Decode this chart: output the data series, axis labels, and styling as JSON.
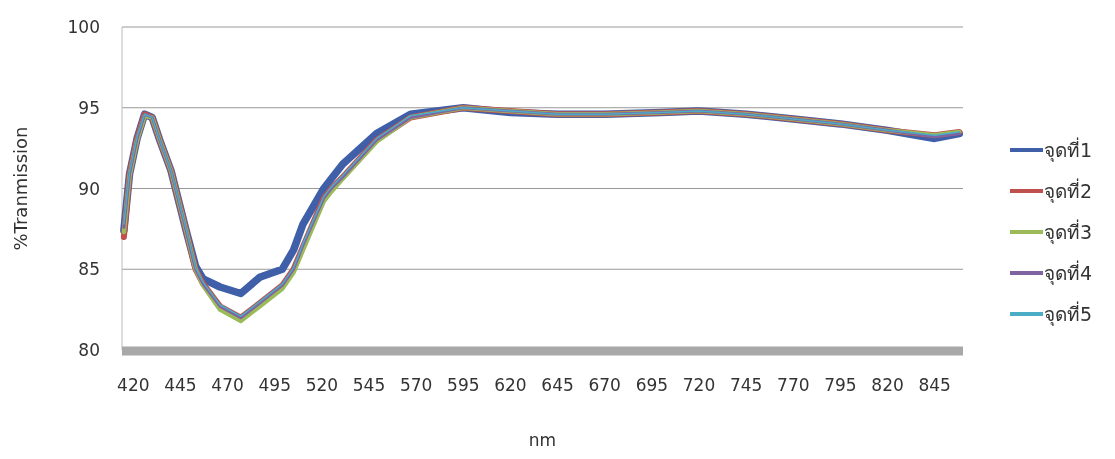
{
  "chart_data": {
    "type": "line",
    "xlabel": "nm",
    "ylabel": "%Tranmission",
    "x": [
      415,
      418,
      422,
      426,
      430,
      434,
      440,
      448,
      453,
      457,
      466,
      477,
      487,
      499,
      505,
      510,
      521,
      525,
      531,
      549,
      567,
      595,
      620,
      645,
      670,
      700,
      720,
      745,
      770,
      795,
      820,
      845,
      858
    ],
    "xlim": [
      414,
      860
    ],
    "xticks": [
      420,
      445,
      470,
      495,
      520,
      545,
      570,
      595,
      620,
      645,
      670,
      695,
      720,
      745,
      770,
      795,
      820,
      845
    ],
    "ylim": [
      80,
      100
    ],
    "yticks": [
      80,
      85,
      90,
      95,
      100
    ],
    "grid": "y",
    "legend": "right",
    "series": [
      {
        "name": "จุดที่1",
        "color": "#3f5fa8",
        "values": [
          87.4,
          90.9,
          93.1,
          94.6,
          94.4,
          93.0,
          91.1,
          87.4,
          85.2,
          84.4,
          83.9,
          83.5,
          84.5,
          85.0,
          86.2,
          87.8,
          90.0,
          90.6,
          91.5,
          93.4,
          94.6,
          95.0,
          94.7,
          94.6,
          94.6,
          94.7,
          94.8,
          94.6,
          94.3,
          94.0,
          93.6,
          93.1,
          93.4
        ]
      },
      {
        "name": "จุดที่2",
        "color": "#c0504d",
        "values": [
          87.0,
          90.9,
          93.1,
          94.6,
          94.4,
          93.0,
          91.1,
          87.4,
          85.0,
          84.1,
          82.7,
          82.0,
          82.9,
          84.0,
          85.0,
          86.4,
          89.4,
          90.0,
          90.7,
          93.0,
          94.4,
          95.0,
          94.8,
          94.6,
          94.6,
          94.7,
          94.8,
          94.6,
          94.3,
          94.0,
          93.6,
          93.3,
          93.5
        ]
      },
      {
        "name": "จุดที่3",
        "color": "#9bbb59",
        "values": [
          87.3,
          90.8,
          93.0,
          94.5,
          94.4,
          93.0,
          91.1,
          87.4,
          85.0,
          84.0,
          82.5,
          81.8,
          82.7,
          83.8,
          84.8,
          86.2,
          89.2,
          89.8,
          90.6,
          92.9,
          94.4,
          95.0,
          94.8,
          94.6,
          94.6,
          94.7,
          94.8,
          94.6,
          94.3,
          94.0,
          93.6,
          93.3,
          93.5
        ]
      },
      {
        "name": "จุดที่4",
        "color": "#8064a2",
        "values": [
          87.6,
          90.9,
          93.1,
          94.6,
          94.4,
          93.0,
          91.1,
          87.4,
          85.0,
          84.1,
          82.7,
          82.0,
          82.9,
          84.0,
          85.0,
          86.5,
          89.4,
          90.0,
          90.7,
          93.0,
          94.4,
          95.0,
          94.8,
          94.6,
          94.6,
          94.7,
          94.8,
          94.6,
          94.3,
          94.0,
          93.6,
          93.2,
          93.4
        ]
      },
      {
        "name": "จุดที่5",
        "color": "#4bacc6",
        "values": [
          87.8,
          91.0,
          93.2,
          94.6,
          94.4,
          93.0,
          91.1,
          87.5,
          85.1,
          84.2,
          82.8,
          82.1,
          83.0,
          84.1,
          85.1,
          86.6,
          89.5,
          90.1,
          90.8,
          93.1,
          94.5,
          95.0,
          94.8,
          94.6,
          94.6,
          94.7,
          94.8,
          94.6,
          94.3,
          94.0,
          93.6,
          93.3,
          93.5
        ]
      }
    ]
  }
}
